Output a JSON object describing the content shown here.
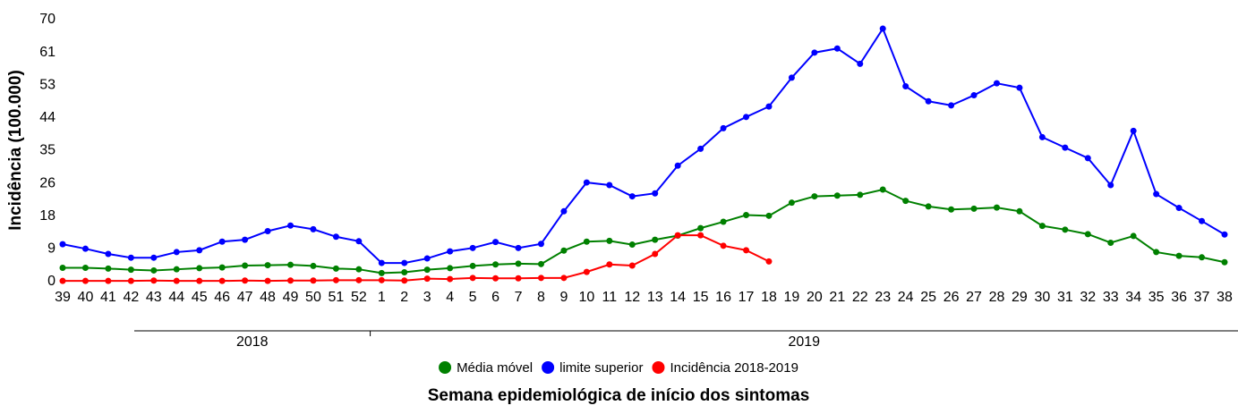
{
  "chart_data": {
    "type": "line",
    "x_title": "Semana epidemiológica de início dos sintomas",
    "y_title": "Incidência (100.000)",
    "categories": [
      "39",
      "40",
      "41",
      "42",
      "43",
      "44",
      "45",
      "46",
      "47",
      "48",
      "49",
      "50",
      "51",
      "52",
      "1",
      "2",
      "3",
      "4",
      "5",
      "6",
      "7",
      "8",
      "9",
      "10",
      "11",
      "12",
      "13",
      "14",
      "15",
      "16",
      "17",
      "18",
      "19",
      "20",
      "21",
      "22",
      "23",
      "24",
      "25",
      "26",
      "27",
      "28",
      "29",
      "30",
      "31",
      "32",
      "33",
      "34",
      "35",
      "36",
      "37",
      "38"
    ],
    "x_group_labels": [
      "2018",
      "2019"
    ],
    "ylim": [
      0,
      70
    ],
    "yticks": [
      0,
      {
        "value": 8.75,
        "label": "9"
      },
      {
        "value": 17.5,
        "label": "18"
      },
      {
        "value": 26.25,
        "label": "26"
      },
      35,
      {
        "value": 43.75,
        "label": "44"
      },
      {
        "value": 52.5,
        "label": "53"
      },
      {
        "value": 61.25,
        "label": "61"
      },
      70
    ],
    "series": [
      {
        "name": "Média móvel",
        "color": "#008000",
        "values": [
          3.7,
          3.7,
          3.5,
          3.2,
          3.0,
          3.3,
          3.6,
          3.8,
          4.3,
          4.4,
          4.5,
          4.2,
          3.5,
          3.3,
          2.3,
          2.5,
          3.2,
          3.6,
          4.2,
          4.6,
          4.8,
          4.7,
          8.3,
          10.7,
          10.9,
          9.9,
          11.2,
          12.3,
          14.3,
          16.0,
          17.8,
          17.6,
          21.1,
          22.8,
          23.0,
          23.2,
          24.6,
          21.6,
          20.1,
          19.3,
          19.5,
          19.8,
          18.8,
          14.9,
          13.9,
          12.7,
          10.4,
          12.2,
          7.9,
          6.9,
          6.5,
          5.2
        ]
      },
      {
        "name": "limite superior",
        "color": "#0000ff",
        "values": [
          10.0,
          8.8,
          7.4,
          6.4,
          6.4,
          7.9,
          8.4,
          10.7,
          11.2,
          13.5,
          15.0,
          14.0,
          12.0,
          10.8,
          5.0,
          5.0,
          6.2,
          8.1,
          9.0,
          10.6,
          9.0,
          10.1,
          18.8,
          26.5,
          25.8,
          22.8,
          23.6,
          31.0,
          35.5,
          41.0,
          44.0,
          46.8,
          54.5,
          61.2,
          62.3,
          58.2,
          67.6,
          52.2,
          48.2,
          47.1,
          49.8,
          53.0,
          51.8,
          38.6,
          35.8,
          33.0,
          25.8,
          40.3,
          23.4,
          19.7,
          16.2,
          12.6
        ]
      },
      {
        "name": "Incidência 2018-2019",
        "color": "#ff0000",
        "values": [
          0.2,
          0.2,
          0.2,
          0.2,
          0.3,
          0.2,
          0.2,
          0.2,
          0.3,
          0.2,
          0.3,
          0.3,
          0.4,
          0.4,
          0.4,
          0.3,
          0.8,
          0.7,
          1.0,
          0.9,
          0.9,
          1.0,
          1.0,
          2.6,
          4.6,
          4.3,
          7.4,
          12.4,
          12.4,
          9.6,
          8.4,
          5.4,
          null,
          null,
          null,
          null,
          null,
          null,
          null,
          null,
          null,
          null,
          null,
          null,
          null,
          null,
          null,
          null,
          null,
          null,
          null,
          null
        ]
      }
    ]
  }
}
